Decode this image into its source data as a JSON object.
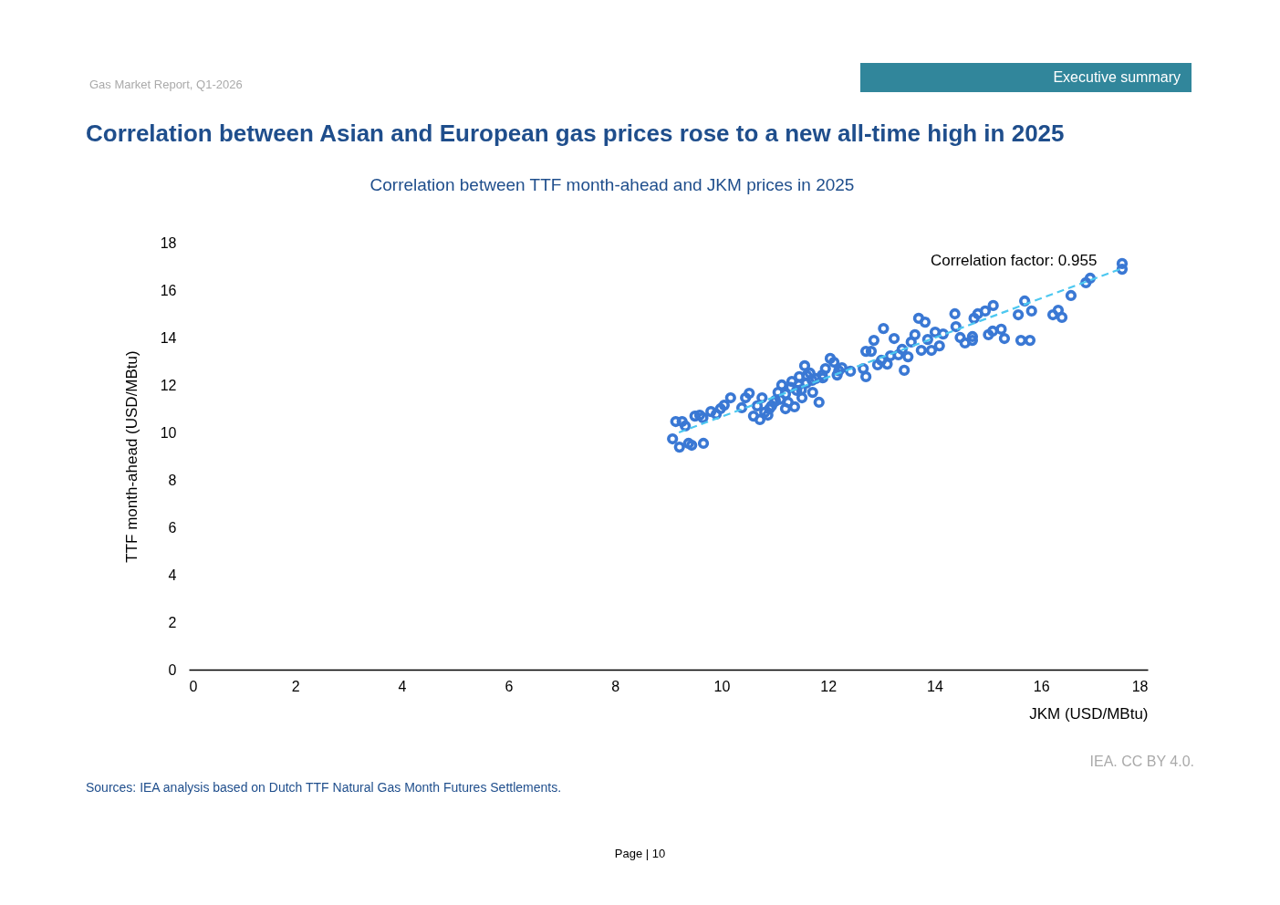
{
  "chart_data": {
    "type": "scatter",
    "title": "Correlation between Asian and European gas prices rose to a new all-time high in 2025",
    "subtitle": "Correlation between TTF month-ahead and JKM prices in 2025",
    "xlabel": "JKM (USD/MBtu)",
    "ylabel": "TTF month-ahead (USD/MBtu)",
    "annotations": [
      "Gas Market Report, Q1-2026",
      "Executive summary",
      "Correlation factor: 0.955",
      "IEA. CC BY 4.0.",
      "Sources: IEA analysis based on Dutch TTF Natural Gas Month Futures Settlements.",
      "Page | 10"
    ],
    "xlim": [
      0,
      18
    ],
    "xticks": [
      0,
      2,
      4,
      6,
      8,
      10,
      12,
      14,
      16,
      18
    ],
    "ylim": [
      0,
      18
    ],
    "yticks": [
      0,
      2,
      4,
      6,
      8,
      10,
      12,
      14,
      16,
      18
    ],
    "grid": false,
    "series": [
      {
        "marker": "circle",
        "color": "#3a78d4",
        "x": [
          9.08,
          9.14,
          9.21,
          9.26,
          9.32,
          9.38,
          9.44,
          9.5,
          9.59,
          9.66,
          9.65,
          9.8,
          9.9,
          9.98,
          10.05,
          10.17,
          10.38,
          10.45,
          10.52,
          10.6,
          10.67,
          10.72,
          10.76,
          10.81,
          10.87,
          10.94,
          11.01,
          11.06,
          11.13,
          11.2,
          11.25,
          11.32,
          11.37,
          11.41,
          11.46,
          11.51,
          11.56,
          11.59,
          11.66,
          11.71,
          11.77,
          11.83,
          11.89,
          11.95,
          12.04,
          12.11,
          12.17,
          12.26,
          12.42,
          12.66,
          12.71,
          12.71,
          12.81,
          12.86,
          12.93,
          13.0,
          13.04,
          13.11,
          13.17,
          13.24,
          13.32,
          13.39,
          13.43,
          13.5,
          13.56,
          13.63,
          13.7,
          13.75,
          13.82,
          13.87,
          13.94,
          14.01,
          14.09,
          14.16,
          14.38,
          14.4,
          14.48,
          14.57,
          14.71,
          14.71,
          14.74,
          14.81,
          14.95,
          15.01,
          15.09,
          15.1,
          15.25,
          15.31,
          15.57,
          15.62,
          15.69,
          15.79,
          15.82,
          16.22,
          16.32,
          16.39,
          16.56,
          16.84,
          16.92,
          17.52,
          17.52,
          11.1,
          11.3,
          11.5,
          11.7,
          11.2,
          11.45,
          10.9,
          11.0,
          11.6,
          12.2,
          11.9
        ],
        "values": [
          9.73,
          10.46,
          9.38,
          10.46,
          10.27,
          9.54,
          9.46,
          10.69,
          10.73,
          9.54,
          10.62,
          10.88,
          10.77,
          11.0,
          11.15,
          11.46,
          11.04,
          11.46,
          11.65,
          10.69,
          11.12,
          10.54,
          11.46,
          10.85,
          10.73,
          11.12,
          11.35,
          11.69,
          12.0,
          11.62,
          11.27,
          12.15,
          11.08,
          11.77,
          12.35,
          11.46,
          12.81,
          12.08,
          12.5,
          11.69,
          12.27,
          11.27,
          12.42,
          12.69,
          13.12,
          12.96,
          12.42,
          12.73,
          12.58,
          12.69,
          13.42,
          12.35,
          13.42,
          13.88,
          12.85,
          13.04,
          14.38,
          12.88,
          13.23,
          13.96,
          13.27,
          13.5,
          12.62,
          13.19,
          13.81,
          14.12,
          14.81,
          13.46,
          14.65,
          13.92,
          13.46,
          14.23,
          13.65,
          14.15,
          15.0,
          14.46,
          14.0,
          13.77,
          14.04,
          13.88,
          14.81,
          15.0,
          15.12,
          14.12,
          14.27,
          15.35,
          14.35,
          13.96,
          14.96,
          13.88,
          15.54,
          13.88,
          15.12,
          14.96,
          15.15,
          14.85,
          15.77,
          16.31,
          16.5,
          17.12,
          16.88,
          11.4,
          11.9,
          11.8,
          12.2,
          11.0,
          12.0,
          11.0,
          11.3,
          12.4,
          12.6,
          12.3
        ]
      },
      {
        "type": "line",
        "marker": "none",
        "color": "#4dc8f0",
        "line_style": "dashed",
        "x": [
          9.2,
          17.5
        ],
        "values": [
          10.0,
          16.9
        ]
      }
    ]
  }
}
